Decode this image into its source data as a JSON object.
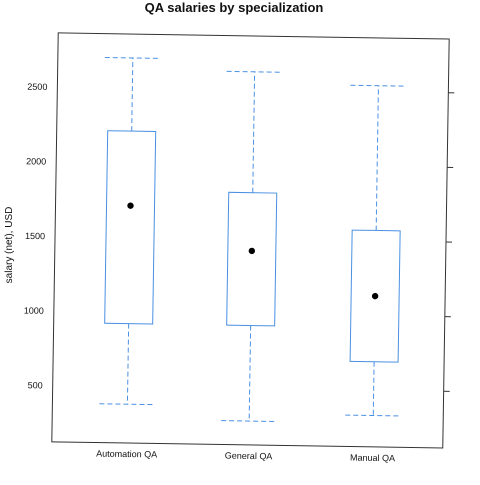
{
  "chart_data": {
    "type": "boxplot",
    "title": "QA salaries by specialization",
    "xlabel": "",
    "ylabel": "salary (net), USD",
    "ylim": [
      120,
      2860
    ],
    "yticks": [
      500,
      1000,
      1500,
      2000,
      2500
    ],
    "ytick_labels": [
      "500",
      "1000",
      "1500",
      "2000",
      "2500"
    ],
    "grid": false,
    "legend": "none",
    "categories": [
      "Automation QA",
      "General QA",
      "Manual QA"
    ],
    "boxes": [
      {
        "category": "Automation QA",
        "whisker_low": 380,
        "q1": 920,
        "median": 1710,
        "q3": 2210,
        "whisker_high": 2700
      },
      {
        "category": "General QA",
        "whisker_low": 280,
        "q1": 920,
        "median": 1420,
        "q3": 1810,
        "whisker_high": 2620
      },
      {
        "category": "Manual QA",
        "whisker_low": 330,
        "q1": 690,
        "median": 1130,
        "q3": 1570,
        "whisker_high": 2540
      }
    ],
    "colors": {
      "box": "#4a90e2",
      "whisker": "#4a90e2",
      "median_marker": "#000000",
      "frame": "#333333"
    }
  }
}
